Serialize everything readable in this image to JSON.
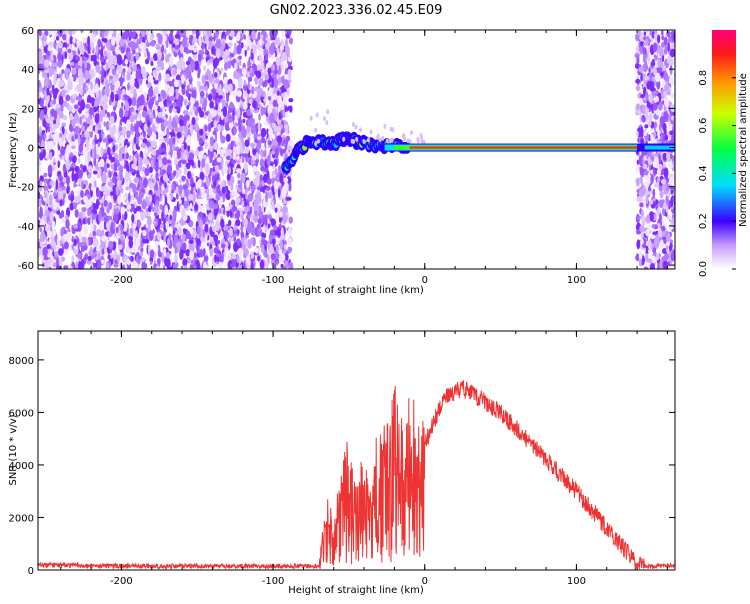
{
  "title": "GN02.2023.336.02.45.E09",
  "chart_data": [
    {
      "type": "heatmap",
      "xlabel": "Height of straight line (km)",
      "ylabel": "Frequency (Hz)",
      "xlim": [
        -255,
        165
      ],
      "ylim": [
        -62,
        60
      ],
      "xticks": [
        -200,
        -100,
        0,
        100
      ],
      "yticks": [
        -60,
        -40,
        -20,
        0,
        20,
        40,
        60
      ],
      "colorbar": {
        "label": "Normalized spectral amplitude",
        "range": [
          0.0,
          1.0
        ],
        "ticks": [
          0.0,
          0.2,
          0.4,
          0.6,
          0.8
        ]
      },
      "regions": [
        {
          "name": "noise-left",
          "x": [
            -255,
            -88
          ],
          "freq": [
            -62,
            60
          ],
          "amplitude": [
            0.0,
            0.15
          ]
        },
        {
          "name": "onset-signal",
          "x": [
            -90,
            -10
          ],
          "freq": [
            -12,
            12
          ],
          "amplitude": [
            0.3,
            0.9
          ]
        },
        {
          "name": "carrier-line",
          "x": [
            -10,
            145
          ],
          "freq": [
            -1,
            1
          ],
          "amplitude": [
            0.9,
            1.0
          ]
        },
        {
          "name": "noise-right",
          "x": [
            140,
            165
          ],
          "freq": [
            -62,
            60
          ],
          "amplitude": [
            0.0,
            0.15
          ]
        }
      ]
    },
    {
      "type": "line",
      "xlabel": "Height of straight line (km)",
      "ylabel": "SNR (10 * v/v)",
      "xlim": [
        -255,
        165
      ],
      "ylim": [
        0,
        9100
      ],
      "xticks": [
        -200,
        -100,
        0,
        100
      ],
      "yticks": [
        0,
        2000,
        4000,
        6000,
        8000
      ],
      "color": "#ee3333",
      "x": [
        -255,
        -200,
        -150,
        -100,
        -70,
        -65,
        -60,
        -55,
        -50,
        -45,
        -40,
        -35,
        -30,
        -25,
        -20,
        -15,
        -10,
        -5,
        0,
        5,
        10,
        15,
        20,
        25,
        30,
        40,
        50,
        60,
        70,
        80,
        90,
        100,
        110,
        120,
        130,
        140,
        150,
        160,
        165
      ],
      "y": [
        200,
        150,
        150,
        150,
        150,
        2500,
        1800,
        3500,
        4500,
        3000,
        4000,
        3500,
        5000,
        4800,
        6500,
        5000,
        6000,
        5500,
        4800,
        5500,
        6200,
        6600,
        6800,
        6900,
        6800,
        6400,
        6000,
        5400,
        4800,
        4200,
        3600,
        3000,
        2300,
        1600,
        900,
        250,
        120,
        180,
        200
      ]
    }
  ]
}
